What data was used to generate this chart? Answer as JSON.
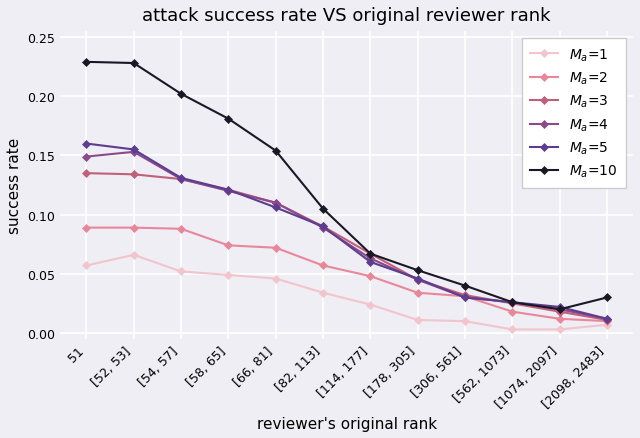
{
  "title": "attack success rate VS original reviewer rank",
  "xlabel": "reviewer's original rank",
  "ylabel": "success rate",
  "x_labels": [
    "51",
    "[52, 53]",
    "[54, 57]",
    "[58, 65]",
    "[66, 81]",
    "[82, 113]",
    "[114, 177]",
    "[178, 305]",
    "[306, 561]",
    "[562, 1073]",
    "[1074, 2097]",
    "[2098, 2483]"
  ],
  "series": [
    {
      "label": "$M_a$=1",
      "color": "#f2c4cc",
      "alpha": 1.0,
      "values": [
        0.057,
        0.066,
        0.052,
        0.049,
        0.046,
        0.034,
        0.024,
        0.011,
        0.01,
        0.003,
        0.003,
        0.007
      ]
    },
    {
      "label": "$M_a$=2",
      "color": "#e8879a",
      "alpha": 1.0,
      "values": [
        0.089,
        0.089,
        0.088,
        0.074,
        0.072,
        0.057,
        0.048,
        0.034,
        0.031,
        0.018,
        0.012,
        0.01
      ]
    },
    {
      "label": "$M_a$=3",
      "color": "#c0607a",
      "alpha": 1.0,
      "values": [
        0.135,
        0.134,
        0.13,
        0.121,
        0.11,
        0.09,
        0.067,
        0.045,
        0.032,
        0.025,
        0.018,
        0.011
      ]
    },
    {
      "label": "$M_a$=4",
      "color": "#8b4a8b",
      "alpha": 1.0,
      "values": [
        0.149,
        0.153,
        0.13,
        0.12,
        0.11,
        0.089,
        0.063,
        0.045,
        0.03,
        0.026,
        0.02,
        0.012
      ]
    },
    {
      "label": "$M_a$=5",
      "color": "#5c3d8f",
      "alpha": 1.0,
      "values": [
        0.16,
        0.155,
        0.131,
        0.121,
        0.106,
        0.09,
        0.06,
        0.046,
        0.03,
        0.026,
        0.022,
        0.012
      ]
    },
    {
      "label": "$M_a$=10",
      "color": "#1a1825",
      "alpha": 1.0,
      "values": [
        0.229,
        0.228,
        0.202,
        0.181,
        0.154,
        0.105,
        0.067,
        0.053,
        0.04,
        0.026,
        0.02,
        0.03
      ]
    }
  ],
  "ylim": [
    -0.005,
    0.255
  ],
  "yticks": [
    0.0,
    0.05,
    0.1,
    0.15,
    0.2,
    0.25
  ],
  "background_color": "#eeeef4",
  "grid_color": "#ffffff",
  "figsize": [
    6.4,
    4.39
  ],
  "dpi": 100
}
